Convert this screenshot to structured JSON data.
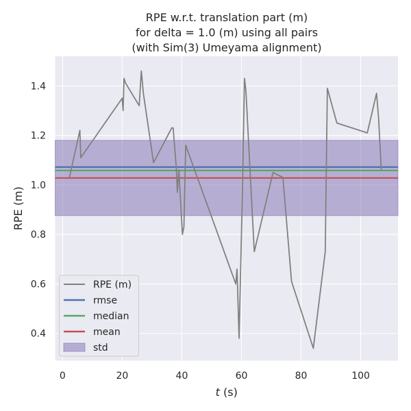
{
  "chart_data": {
    "type": "line",
    "title_lines": [
      "RPE w.r.t. translation part (m)",
      "for delta = 1.0 (m) using all pairs",
      "(with Sim(3) Umeyama alignment)"
    ],
    "xlabel_italic": "t",
    "xlabel_suffix": " (s)",
    "ylabel": "RPE (m)",
    "xlim": [
      -2.5,
      112.5
    ],
    "ylim": [
      0.29,
      1.52
    ],
    "xticks": [
      0,
      20,
      40,
      60,
      80,
      100
    ],
    "yticks": [
      0.4,
      0.6,
      0.8,
      1.0,
      1.2,
      1.4
    ],
    "xtick_labels": [
      "0",
      "20",
      "40",
      "60",
      "80",
      "100"
    ],
    "ytick_labels": [
      "0.4",
      "0.6",
      "0.8",
      "1.0",
      "1.2",
      "1.4"
    ],
    "grid": true,
    "legend_position": "lower-left",
    "series": [
      {
        "name": "RPE (m)",
        "color": "#808080",
        "x": [
          2.3,
          5.8,
          6.1,
          20.0,
          20.3,
          20.6,
          21.2,
          25.7,
          26.4,
          27.1,
          30.5,
          36.6,
          37.1,
          38.2,
          38.5,
          39.0,
          40.2,
          40.7,
          41.3,
          44.6,
          58.1,
          58.5,
          59.2,
          60.3,
          61.0,
          61.5,
          64.3,
          70.6,
          73.9,
          76.8,
          84.1,
          88.1,
          88.8,
          92.0,
          102.2,
          105.3,
          106.0,
          106.9
        ],
        "y": [
          1.03,
          1.22,
          1.11,
          1.35,
          1.3,
          1.43,
          1.41,
          1.32,
          1.46,
          1.37,
          1.09,
          1.23,
          1.23,
          1.06,
          0.97,
          1.06,
          0.8,
          0.83,
          1.16,
          1.05,
          0.6,
          0.66,
          0.38,
          0.96,
          1.43,
          1.38,
          0.73,
          1.05,
          1.03,
          0.61,
          0.34,
          0.73,
          1.39,
          1.25,
          1.21,
          1.37,
          1.27,
          1.06
        ]
      },
      {
        "name": "rmse",
        "color": "#4c72b0",
        "value": 1.072
      },
      {
        "name": "median",
        "color": "#55a868",
        "value": 1.058
      },
      {
        "name": "mean",
        "color": "#c44e52",
        "value": 1.028
      }
    ],
    "std_band": {
      "name": "std",
      "color": "#8172b2",
      "lower": 0.876,
      "upper": 1.18
    },
    "colors": {
      "plot_background": "#eaeaf2",
      "grid": "#ffffff",
      "legend_background": "#eaeaf2",
      "legend_border": "#cccccc"
    }
  }
}
